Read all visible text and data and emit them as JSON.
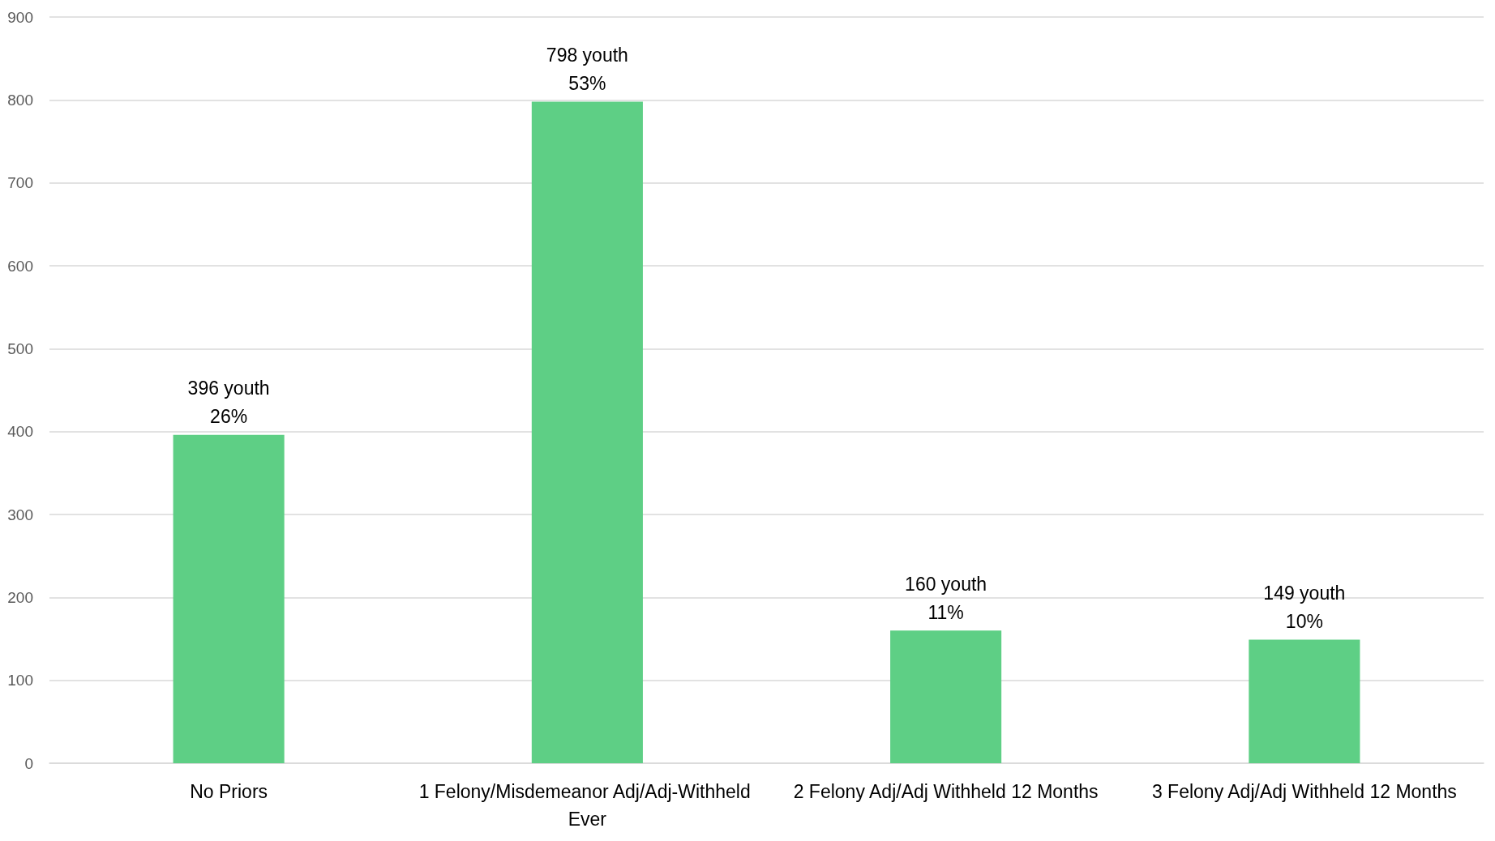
{
  "chart_data": {
    "type": "bar",
    "categories": [
      "No Priors",
      "1 Felony/Misdemeanor Adj/Adj-Withheld Ever",
      "2 Felony Adj/Adj Withheld 12 Months",
      "3 Felony Adj/Adj Withheld 12 Months"
    ],
    "values": [
      396,
      798,
      160,
      149
    ],
    "value_labels": [
      "396 youth\n26%",
      "798 youth\n53%",
      "160 youth\n11%",
      "149 youth\n10%"
    ],
    "color": "#5ecf85",
    "ylim": [
      0,
      900
    ],
    "yticks": [
      0,
      100,
      200,
      300,
      400,
      500,
      600,
      700,
      800,
      900
    ],
    "grid": "y"
  }
}
